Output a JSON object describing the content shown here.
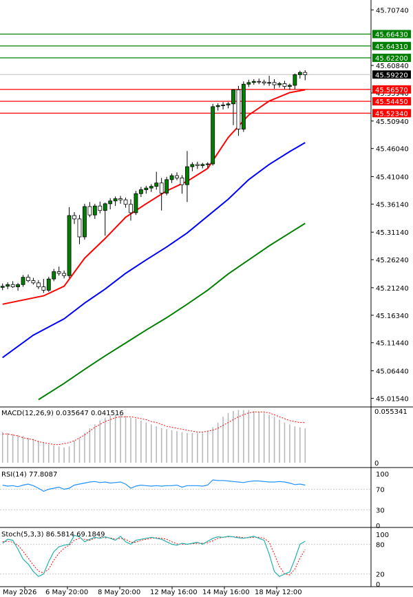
{
  "chart_data": {
    "type": "candlestick",
    "price_axis": {
      "ticks": [
        45.7074,
        45.6084,
        45.5594,
        45.5094,
        45.4604,
        45.4104,
        45.3614,
        45.3114,
        45.2624,
        45.2124,
        45.1634,
        45.1144,
        45.0644,
        45.0154
      ],
      "ylim": [
        45.0,
        45.725
      ]
    },
    "time_axis": {
      "labels": [
        "May 2026",
        "6 May 20:00",
        "8 May 20:00",
        "12 May 16:00",
        "14 May 16:00",
        "18 May 12:00"
      ]
    },
    "current_price": {
      "label": "45.59220",
      "value": 45.5922
    },
    "resistance_levels": [
      {
        "label": "45.66430",
        "value": 45.6643
      },
      {
        "label": "45.64310",
        "value": 45.6431
      },
      {
        "label": "45.62200",
        "value": 45.622
      }
    ],
    "support_levels": [
      {
        "label": "45.56570",
        "value": 45.5657
      },
      {
        "label": "45.54450",
        "value": 45.5445
      },
      {
        "label": "45.52340",
        "value": 45.5234
      }
    ],
    "candles": [
      [
        45.213,
        45.22,
        45.208,
        45.215
      ],
      [
        45.215,
        45.222,
        45.21,
        45.218
      ],
      [
        45.218,
        45.224,
        45.212,
        45.214
      ],
      [
        45.214,
        45.221,
        45.207,
        45.218
      ],
      [
        45.218,
        45.235,
        45.214,
        45.231
      ],
      [
        45.231,
        45.236,
        45.222,
        45.225
      ],
      [
        45.225,
        45.23,
        45.218,
        45.221
      ],
      [
        45.221,
        45.226,
        45.21,
        45.214
      ],
      [
        45.214,
        45.228,
        45.203,
        45.208
      ],
      [
        45.208,
        45.232,
        45.205,
        45.228
      ],
      [
        45.228,
        45.246,
        45.224,
        45.241
      ],
      [
        45.241,
        45.25,
        45.234,
        45.238
      ],
      [
        45.238,
        45.243,
        45.229,
        45.234
      ],
      [
        45.234,
        45.356,
        45.23,
        45.341
      ],
      [
        45.341,
        45.347,
        45.326,
        45.335
      ],
      [
        45.335,
        45.342,
        45.29,
        45.303
      ],
      [
        45.303,
        45.362,
        45.298,
        45.357
      ],
      [
        45.357,
        45.365,
        45.338,
        45.342
      ],
      [
        45.342,
        45.362,
        45.335,
        45.358
      ],
      [
        45.358,
        45.366,
        45.345,
        45.35
      ],
      [
        45.35,
        45.364,
        45.305,
        45.362
      ],
      [
        45.362,
        45.372,
        45.352,
        45.367
      ],
      [
        45.367,
        45.375,
        45.358,
        45.371
      ],
      [
        45.371,
        45.376,
        45.362,
        45.369
      ],
      [
        45.369,
        45.373,
        45.355,
        45.361
      ],
      [
        45.361,
        45.37,
        45.332,
        45.346
      ],
      [
        45.346,
        45.385,
        45.342,
        45.38
      ],
      [
        45.38,
        45.392,
        45.374,
        45.387
      ],
      [
        45.387,
        45.394,
        45.38,
        45.39
      ],
      [
        45.39,
        45.397,
        45.383,
        45.393
      ],
      [
        45.393,
        45.419,
        45.387,
        45.399
      ],
      [
        45.399,
        45.408,
        45.35,
        45.381
      ],
      [
        45.381,
        45.41,
        45.377,
        45.405
      ],
      [
        45.405,
        45.416,
        45.399,
        45.412
      ],
      [
        45.412,
        45.418,
        45.404,
        45.408
      ],
      [
        45.408,
        45.413,
        45.38,
        45.396
      ],
      [
        45.396,
        45.456,
        45.365,
        45.428
      ],
      [
        45.428,
        45.436,
        45.42,
        45.432
      ],
      [
        45.432,
        45.437,
        45.424,
        45.43
      ],
      [
        45.43,
        45.435,
        45.425,
        45.432
      ],
      [
        45.432,
        45.436,
        45.426,
        45.433
      ],
      [
        45.433,
        45.54,
        45.43,
        45.535
      ],
      [
        45.535,
        45.541,
        45.528,
        45.537
      ],
      [
        45.537,
        45.543,
        45.53,
        45.538
      ],
      [
        45.538,
        45.543,
        45.532,
        45.54
      ],
      [
        45.54,
        45.566,
        45.502,
        45.565
      ],
      [
        45.565,
        45.572,
        45.483,
        45.495
      ],
      [
        45.495,
        45.58,
        45.49,
        45.575
      ],
      [
        45.575,
        45.583,
        45.57,
        45.578
      ],
      [
        45.578,
        45.584,
        45.574,
        45.58
      ],
      [
        45.58,
        45.585,
        45.575,
        45.579
      ],
      [
        45.579,
        45.583,
        45.573,
        45.577
      ],
      [
        45.577,
        45.59,
        45.572,
        45.578
      ],
      [
        45.578,
        45.584,
        45.567,
        45.574
      ],
      [
        45.574,
        45.579,
        45.569,
        45.576
      ],
      [
        45.576,
        45.581,
        45.566,
        45.571
      ],
      [
        45.571,
        45.576,
        45.565,
        45.573
      ],
      [
        45.573,
        45.594,
        45.566,
        45.592
      ],
      [
        45.592,
        45.599,
        45.585,
        45.596
      ],
      [
        45.596,
        45.6,
        45.582,
        45.592
      ]
    ],
    "moving_averages": [
      {
        "color": "#ff0000",
        "points": [
          [
            0,
            45.183
          ],
          [
            8,
            45.198
          ],
          [
            12,
            45.215
          ],
          [
            16,
            45.265
          ],
          [
            20,
            45.3
          ],
          [
            24,
            45.338
          ],
          [
            28,
            45.362
          ],
          [
            32,
            45.385
          ],
          [
            36,
            45.402
          ],
          [
            40,
            45.425
          ],
          [
            44,
            45.48
          ],
          [
            48,
            45.52
          ],
          [
            52,
            45.545
          ],
          [
            56,
            45.56
          ],
          [
            59,
            45.565
          ]
        ]
      },
      {
        "color": "#0000ff",
        "points": [
          [
            0,
            45.088
          ],
          [
            6,
            45.128
          ],
          [
            12,
            45.157
          ],
          [
            16,
            45.185
          ],
          [
            20,
            45.21
          ],
          [
            24,
            45.238
          ],
          [
            28,
            45.262
          ],
          [
            32,
            45.285
          ],
          [
            36,
            45.31
          ],
          [
            40,
            45.34
          ],
          [
            44,
            45.37
          ],
          [
            48,
            45.405
          ],
          [
            52,
            45.432
          ],
          [
            56,
            45.455
          ],
          [
            59,
            45.471
          ]
        ]
      },
      {
        "color": "#008000",
        "points": [
          [
            7,
            45.013
          ],
          [
            12,
            45.042
          ],
          [
            16,
            45.067
          ],
          [
            20,
            45.091
          ],
          [
            24,
            45.114
          ],
          [
            28,
            45.137
          ],
          [
            32,
            45.159
          ],
          [
            36,
            45.183
          ],
          [
            40,
            45.208
          ],
          [
            44,
            45.237
          ],
          [
            48,
            45.262
          ],
          [
            52,
            45.287
          ],
          [
            56,
            45.31
          ],
          [
            59,
            45.327
          ]
        ]
      }
    ],
    "macd": {
      "label": "MACD(12,26,9) 0.035647 0.041516",
      "axis_max": "0.055341",
      "axis_zero": "0",
      "ymax": 0.055341,
      "histogram": [
        0.032,
        0.031,
        0.03,
        0.029,
        0.028,
        0.026,
        0.025,
        0.023,
        0.021,
        0.019,
        0.018,
        0.017,
        0.016,
        0.017,
        0.023,
        0.026,
        0.031,
        0.036,
        0.04,
        0.044,
        0.047,
        0.049,
        0.05,
        0.05,
        0.049,
        0.047,
        0.046,
        0.044,
        0.042,
        0.04,
        0.038,
        0.036,
        0.035,
        0.034,
        0.033,
        0.032,
        0.031,
        0.031,
        0.031,
        0.031,
        0.033,
        0.037,
        0.042,
        0.048,
        0.052,
        0.054,
        0.055,
        0.055,
        0.055,
        0.054,
        0.053,
        0.052,
        0.05,
        0.048,
        0.045,
        0.042,
        0.04,
        0.038,
        0.037,
        0.036
      ],
      "signal": [
        0.03,
        0.03,
        0.029,
        0.028,
        0.026,
        0.025,
        0.024,
        0.022,
        0.021,
        0.02,
        0.019,
        0.019,
        0.02,
        0.021,
        0.023,
        0.026,
        0.029,
        0.033,
        0.037,
        0.04,
        0.043,
        0.045,
        0.047,
        0.048,
        0.048,
        0.048,
        0.047,
        0.046,
        0.045,
        0.043,
        0.042,
        0.04,
        0.038,
        0.037,
        0.036,
        0.035,
        0.034,
        0.033,
        0.032,
        0.032,
        0.033,
        0.034,
        0.036,
        0.039,
        0.042,
        0.045,
        0.048,
        0.05,
        0.052,
        0.053,
        0.053,
        0.053,
        0.052,
        0.05,
        0.048,
        0.046,
        0.044,
        0.043,
        0.042,
        0.042
      ]
    },
    "rsi": {
      "label": "RSI(14) 77.8087",
      "levels": [
        100,
        70,
        30,
        0
      ],
      "values": [
        78,
        76,
        77,
        75,
        78,
        80,
        77,
        72,
        66,
        70,
        72,
        74,
        70,
        72,
        78,
        80,
        82,
        84,
        85,
        83,
        84,
        82,
        83,
        84,
        80,
        72,
        76,
        78,
        77,
        76,
        77,
        76,
        77,
        77,
        78,
        74,
        77,
        77,
        77,
        76,
        78,
        88,
        87,
        87,
        86,
        85,
        84,
        83,
        85,
        86,
        86,
        85,
        84,
        84,
        85,
        84,
        82,
        79,
        80,
        78
      ]
    },
    "stoch": {
      "label": "Stoch(5,3,3) 86.5814 69.1849",
      "levels": [
        100,
        80,
        20,
        0
      ],
      "k": [
        82,
        90,
        88,
        70,
        50,
        40,
        25,
        15,
        20,
        45,
        65,
        75,
        78,
        80,
        98,
        95,
        85,
        90,
        94,
        92,
        95,
        92,
        88,
        96,
        85,
        80,
        88,
        90,
        92,
        94,
        92,
        90,
        85,
        80,
        78,
        82,
        80,
        82,
        84,
        80,
        86,
        92,
        95,
        94,
        96,
        95,
        93,
        92,
        94,
        96,
        92,
        88,
        60,
        25,
        15,
        20,
        24,
        50,
        80,
        86
      ],
      "d": [
        85,
        86,
        84,
        78,
        66,
        52,
        38,
        26,
        22,
        30,
        48,
        62,
        72,
        78,
        88,
        92,
        90,
        88,
        92,
        94,
        93,
        93,
        90,
        92,
        90,
        84,
        84,
        88,
        90,
        92,
        93,
        92,
        90,
        85,
        81,
        80,
        80,
        81,
        82,
        82,
        83,
        87,
        92,
        94,
        95,
        95,
        95,
        93,
        93,
        94,
        94,
        92,
        84,
        60,
        35,
        20,
        18,
        30,
        52,
        69
      ]
    }
  }
}
